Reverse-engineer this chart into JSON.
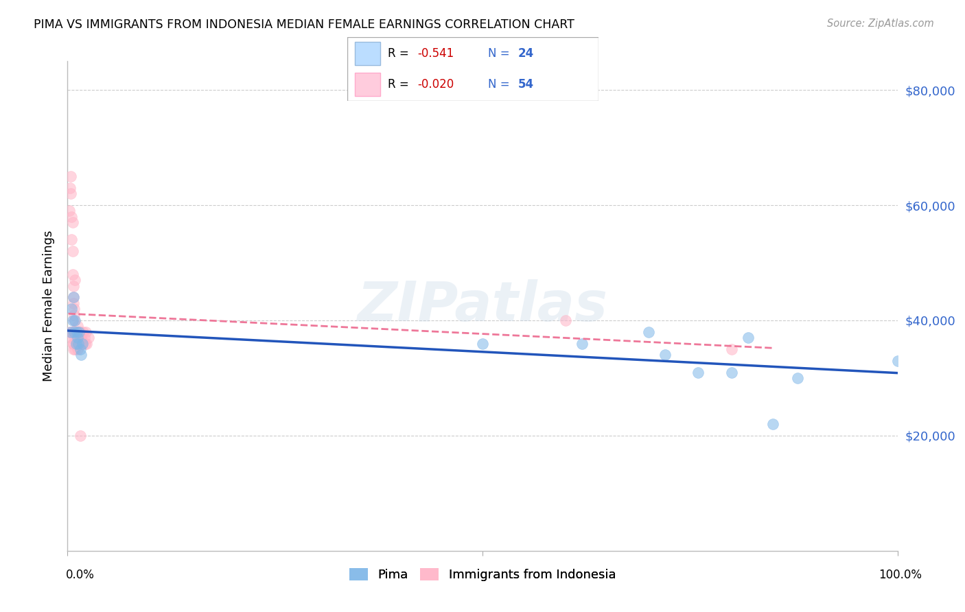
{
  "title": "PIMA VS IMMIGRANTS FROM INDONESIA MEDIAN FEMALE EARNINGS CORRELATION CHART",
  "source": "Source: ZipAtlas.com",
  "ylabel": "Median Female Earnings",
  "watermark": "ZIPatlas",
  "ytick_vals": [
    20000,
    40000,
    60000,
    80000
  ],
  "ytick_labels": [
    "$20,000",
    "$40,000",
    "$60,000",
    "$80,000"
  ],
  "ylim": [
    0,
    85000
  ],
  "xlim": [
    0,
    1.0
  ],
  "blue_scatter": "#7EB6E8",
  "pink_scatter": "#FFB3C6",
  "line_blue_color": "#2255BB",
  "line_pink_color": "#EE7799",
  "grid_color": "#CCCCCC",
  "right_tick_color": "#3366CC",
  "pima_x": [
    0.004,
    0.005,
    0.006,
    0.007,
    0.008,
    0.009,
    0.01,
    0.011,
    0.012,
    0.013,
    0.014,
    0.015,
    0.016,
    0.018,
    0.5,
    0.62,
    0.7,
    0.72,
    0.76,
    0.8,
    0.82,
    0.85,
    0.88,
    1.0
  ],
  "pima_y": [
    38000,
    42000,
    40000,
    44000,
    38000,
    40000,
    36000,
    38000,
    37000,
    36000,
    38000,
    35000,
    34000,
    36000,
    36000,
    36000,
    38000,
    34000,
    31000,
    31000,
    37000,
    22000,
    30000,
    33000
  ],
  "indonesia_x": [
    0.002,
    0.003,
    0.004,
    0.004,
    0.005,
    0.005,
    0.006,
    0.006,
    0.006,
    0.007,
    0.007,
    0.007,
    0.008,
    0.008,
    0.008,
    0.009,
    0.009,
    0.01,
    0.01,
    0.01,
    0.011,
    0.011,
    0.012,
    0.012,
    0.013,
    0.013,
    0.013,
    0.014,
    0.014,
    0.015,
    0.015,
    0.016,
    0.017,
    0.018,
    0.019,
    0.02,
    0.021,
    0.022,
    0.023,
    0.025,
    0.003,
    0.004,
    0.005,
    0.006,
    0.006,
    0.007,
    0.007,
    0.008,
    0.009,
    0.01,
    0.012,
    0.015,
    0.6,
    0.8
  ],
  "indonesia_y": [
    59000,
    63000,
    65000,
    62000,
    58000,
    54000,
    52000,
    48000,
    57000,
    46000,
    44000,
    43000,
    42000,
    41000,
    40000,
    47000,
    38000,
    38000,
    37000,
    36000,
    38000,
    37000,
    39000,
    38000,
    38000,
    37000,
    36000,
    38000,
    37000,
    38000,
    37000,
    37000,
    36000,
    36000,
    38000,
    37000,
    36000,
    38000,
    36000,
    37000,
    38000,
    38000,
    37000,
    36000,
    38000,
    36000,
    35000,
    37000,
    35000,
    36000,
    35000,
    20000,
    40000,
    35000
  ]
}
